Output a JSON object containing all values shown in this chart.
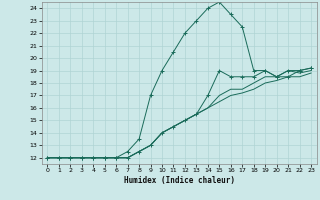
{
  "xlabel": "Humidex (Indice chaleur)",
  "bg_color": "#cce8e8",
  "grid_color": "#b0d4d4",
  "line_color": "#1a6b5a",
  "xlim": [
    -0.5,
    23.5
  ],
  "ylim": [
    11.5,
    24.5
  ],
  "xticks": [
    0,
    1,
    2,
    3,
    4,
    5,
    6,
    7,
    8,
    9,
    10,
    11,
    12,
    13,
    14,
    15,
    16,
    17,
    18,
    19,
    20,
    21,
    22,
    23
  ],
  "yticks": [
    12,
    13,
    14,
    15,
    16,
    17,
    18,
    19,
    20,
    21,
    22,
    23,
    24
  ],
  "series1_x": [
    0,
    1,
    2,
    3,
    4,
    5,
    6,
    7,
    8,
    9,
    10,
    11,
    12,
    13,
    14,
    15,
    16,
    17,
    18,
    19,
    20,
    21,
    22,
    23
  ],
  "series1_y": [
    12,
    12,
    12,
    12,
    12,
    12,
    12,
    12.5,
    13.5,
    17,
    19,
    20.5,
    22,
    23,
    24,
    24.5,
    23.5,
    22.5,
    19,
    19,
    18.5,
    18.5,
    19,
    19.2
  ],
  "series2_x": [
    0,
    1,
    2,
    3,
    4,
    5,
    6,
    7,
    8,
    9,
    10,
    11,
    12,
    13,
    14,
    15,
    16,
    17,
    18,
    19,
    20,
    21,
    22,
    23
  ],
  "series2_y": [
    12,
    12,
    12,
    12,
    12,
    12,
    12,
    12,
    12.5,
    13,
    14,
    14.5,
    15,
    15.5,
    17,
    19,
    18.5,
    18.5,
    18.5,
    19,
    18.5,
    19,
    19,
    19.2
  ],
  "series3_x": [
    0,
    1,
    2,
    3,
    4,
    5,
    6,
    7,
    8,
    9,
    10,
    11,
    12,
    13,
    14,
    15,
    16,
    17,
    18,
    19,
    20,
    21,
    22,
    23
  ],
  "series3_y": [
    12,
    12,
    12,
    12,
    12,
    12,
    12,
    12,
    12.5,
    13,
    14,
    14.5,
    15,
    15.5,
    16,
    17,
    17.5,
    17.5,
    18,
    18.5,
    18.5,
    19,
    18.8,
    19
  ],
  "series4_x": [
    0,
    1,
    2,
    3,
    4,
    5,
    6,
    7,
    8,
    9,
    10,
    11,
    12,
    13,
    14,
    15,
    16,
    17,
    18,
    19,
    20,
    21,
    22,
    23
  ],
  "series4_y": [
    12,
    12,
    12,
    12,
    12,
    12,
    12,
    12,
    12.5,
    13,
    14,
    14.5,
    15,
    15.5,
    16,
    16.5,
    17,
    17.2,
    17.5,
    18,
    18.2,
    18.5,
    18.5,
    18.8
  ]
}
